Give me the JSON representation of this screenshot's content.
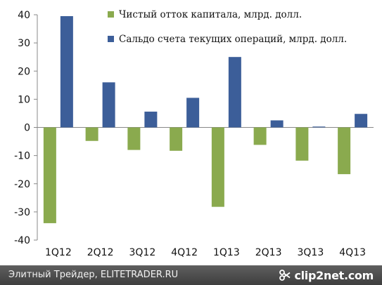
{
  "chart_data": {
    "type": "bar",
    "categories": [
      "1Q12",
      "2Q12",
      "3Q12",
      "4Q12",
      "1Q13",
      "2Q13",
      "3Q13",
      "4Q13"
    ],
    "series": [
      {
        "name": "Чистый отток капитала, млрд. долл.",
        "color": "#8aaa4e",
        "values": [
          -34,
          -4.8,
          -8,
          -8.3,
          -28.2,
          -6.2,
          -11.8,
          -16.6
        ]
      },
      {
        "name": "Сальдо счета текущих операций, млрд. долл.",
        "color": "#3c5e99",
        "values": [
          39.5,
          16,
          5.6,
          10.5,
          25,
          2.5,
          0.3,
          4.8
        ]
      }
    ],
    "ylim": [
      -40,
      40
    ],
    "yticks": [
      "40",
      "30",
      "20",
      "10",
      "0",
      "-10",
      "-20",
      "-30",
      "-40"
    ],
    "grid": false,
    "legend_position": "top-right"
  },
  "footer": {
    "caption": "Элитный Трейдер, ELITETRADER.RU",
    "logo_text": "clip2net.com",
    "logo_icon": "scissors-icon"
  }
}
